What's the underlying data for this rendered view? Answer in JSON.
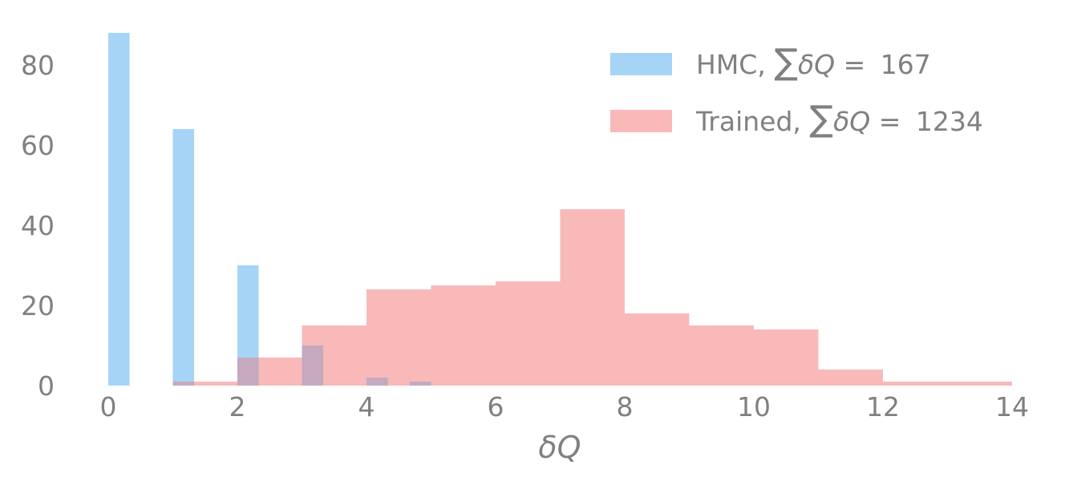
{
  "chart_data": {
    "type": "bar",
    "title": "",
    "xlabel": "δQ",
    "ylabel": "",
    "xlim": [
      0,
      14
    ],
    "ylim": [
      0,
      88
    ],
    "x_ticks": [
      "0",
      "2",
      "4",
      "6",
      "8",
      "10",
      "12",
      "14"
    ],
    "y_ticks": [
      "0",
      "20",
      "40",
      "60",
      "80"
    ],
    "grid": false,
    "legend_position": "top-right",
    "series": [
      {
        "name": "HMC, ∑δQ = 167",
        "color": "#a6d4f7",
        "bins": [
          {
            "x0": 0.0,
            "x1": 0.33,
            "count": 88
          },
          {
            "x0": 1.0,
            "x1": 1.33,
            "count": 64
          },
          {
            "x0": 2.0,
            "x1": 2.33,
            "count": 30
          },
          {
            "x0": 3.0,
            "x1": 3.33,
            "count": 10
          },
          {
            "x0": 4.0,
            "x1": 4.33,
            "count": 2
          },
          {
            "x0": 4.67,
            "x1": 5.0,
            "count": 1
          }
        ]
      },
      {
        "name": "Trained, ∑δQ = 1234",
        "color": "#f9b9b9",
        "bins": [
          {
            "x0": 1.0,
            "x1": 2.0,
            "count": 1
          },
          {
            "x0": 2.0,
            "x1": 3.0,
            "count": 7
          },
          {
            "x0": 3.0,
            "x1": 4.0,
            "count": 15
          },
          {
            "x0": 4.0,
            "x1": 5.0,
            "count": 24
          },
          {
            "x0": 5.0,
            "x1": 6.0,
            "count": 25
          },
          {
            "x0": 6.0,
            "x1": 7.0,
            "count": 26
          },
          {
            "x0": 7.0,
            "x1": 8.0,
            "count": 44
          },
          {
            "x0": 8.0,
            "x1": 9.0,
            "count": 18
          },
          {
            "x0": 9.0,
            "x1": 10.0,
            "count": 15
          },
          {
            "x0": 10.0,
            "x1": 11.0,
            "count": 14
          },
          {
            "x0": 11.0,
            "x1": 12.0,
            "count": 4
          },
          {
            "x0": 12.0,
            "x1": 14.0,
            "count": 1
          }
        ]
      }
    ],
    "overlap_color": "#c4a9bf",
    "legend": [
      {
        "series": 0,
        "label_prefix": "HMC, ",
        "label_value": "167"
      },
      {
        "series": 1,
        "label_prefix": "Trained, ",
        "label_value": "1234"
      }
    ]
  }
}
